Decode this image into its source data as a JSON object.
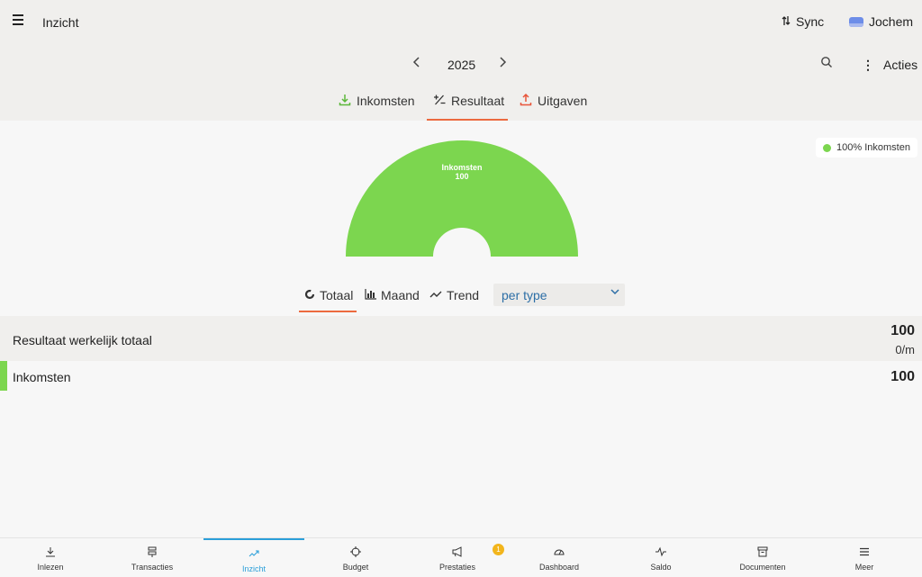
{
  "app": {
    "title": "Inzicht"
  },
  "header": {
    "sync_label": "Sync",
    "user_name": "Jochem",
    "year": "2025",
    "acties_label": "Acties"
  },
  "tabs": [
    {
      "label": "Inkomsten"
    },
    {
      "label": "Resultaat"
    },
    {
      "label": "Uitgaven"
    }
  ],
  "chart_data": {
    "type": "pie",
    "categories": [
      "Inkomsten"
    ],
    "values": [
      100
    ],
    "slice_labels": [
      "Inkomsten",
      "100"
    ],
    "legend": "100% Inkomsten",
    "legend_position": "top-right",
    "colors": [
      "#7cd64f"
    ]
  },
  "view_tabs": [
    {
      "label": "Totaal"
    },
    {
      "label": "Maand"
    },
    {
      "label": "Trend"
    }
  ],
  "group_select": {
    "value": "per type"
  },
  "summary": {
    "total_label": "Resultaat werkelijk totaal",
    "total_value": "100",
    "total_sub": "0/m",
    "rows": [
      {
        "label": "Inkomsten",
        "value": "100"
      }
    ]
  },
  "bottom_nav": [
    {
      "label": "Inlezen",
      "icon": "download-icon"
    },
    {
      "label": "Transacties",
      "icon": "transactions-icon"
    },
    {
      "label": "Inzicht",
      "icon": "trend-icon"
    },
    {
      "label": "Budget",
      "icon": "target-icon"
    },
    {
      "label": "Prestaties",
      "icon": "megaphone-icon"
    },
    {
      "label": "Dashboard",
      "icon": "gauge-icon"
    },
    {
      "label": "Saldo",
      "icon": "pulse-icon"
    },
    {
      "label": "Documenten",
      "icon": "archive-icon"
    },
    {
      "label": "Meer",
      "icon": "menu-icon"
    }
  ],
  "prestaties_badge": "1",
  "colors": {
    "accent": "#ec6a3f",
    "income": "#7cd64f",
    "active_nav": "#2b9fd9",
    "expense": "#e8553a"
  }
}
